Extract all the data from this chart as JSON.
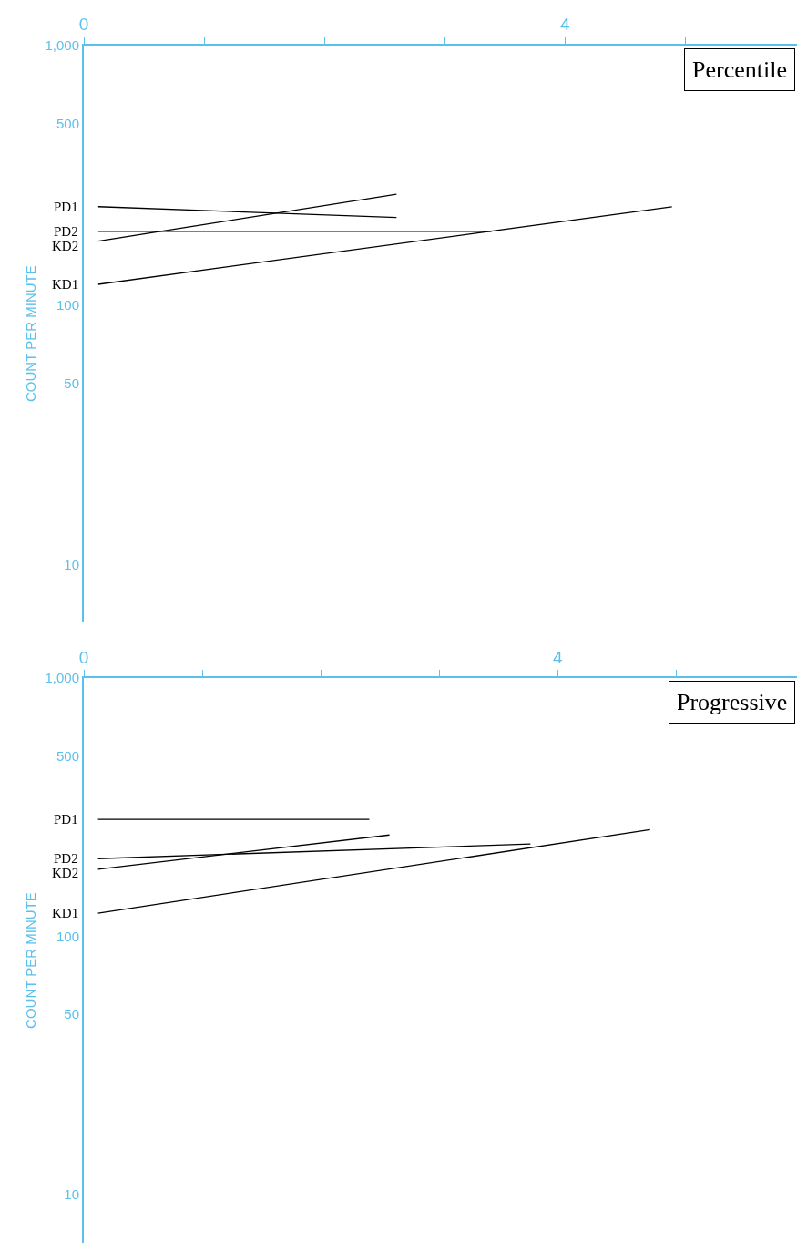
{
  "chart_data": [
    {
      "type": "line",
      "ylabel": "COUNT PER MINUTE",
      "annotations": [
        "Percentile"
      ],
      "log": "y",
      "xlim": [
        0,
        5.93
      ],
      "xticks": [
        0,
        {
          "value": 1,
          "label": null
        },
        {
          "value": 2,
          "label": null
        },
        {
          "value": 3,
          "label": null
        },
        4,
        {
          "value": 5,
          "label": null
        }
      ],
      "ylim": [
        6,
        1000
      ],
      "yticks": [
        {
          "value": 1000,
          "label": "1,000"
        },
        500,
        100,
        50,
        10
      ],
      "series": [
        {
          "name": "PD1",
          "color": "#000000",
          "x": [
            0.12,
            2.6
          ],
          "values": [
            239,
            217
          ]
        },
        {
          "name": "PD2",
          "color": "#000000",
          "x": [
            0.12,
            3.39
          ],
          "values": [
            192,
            192
          ]
        },
        {
          "name": "KD2",
          "color": "#000000",
          "x": [
            0.12,
            2.6
          ],
          "values": [
            176,
            267
          ]
        },
        {
          "name": "KD1",
          "color": "#000000",
          "x": [
            0.12,
            4.89
          ],
          "values": [
            120,
            239
          ]
        }
      ]
    },
    {
      "type": "line",
      "ylabel": "COUNT PER MINUTE",
      "annotations": [
        "Progressive"
      ],
      "log": "y",
      "xlim": [
        0,
        6.02
      ],
      "xticks": [
        0,
        {
          "value": 1,
          "label": null
        },
        {
          "value": 2,
          "label": null
        },
        {
          "value": 3,
          "label": null
        },
        4,
        {
          "value": 5,
          "label": null
        }
      ],
      "ylim": [
        6.5,
        1000
      ],
      "yticks": [
        {
          "value": 1000,
          "label": "1,000"
        },
        500,
        100,
        50,
        10
      ],
      "series": [
        {
          "name": "PD1",
          "color": "#000000",
          "x": [
            0.12,
            2.41
          ],
          "values": [
            284,
            284
          ]
        },
        {
          "name": "PD2",
          "color": "#000000",
          "x": [
            0.12,
            3.77
          ],
          "values": [
            200,
            228
          ]
        },
        {
          "name": "KD2",
          "color": "#000000",
          "x": [
            0.12,
            2.58
          ],
          "values": [
            182,
            247
          ]
        },
        {
          "name": "KD1",
          "color": "#000000",
          "x": [
            0.12,
            4.78
          ],
          "values": [
            123,
            259
          ]
        }
      ]
    }
  ]
}
